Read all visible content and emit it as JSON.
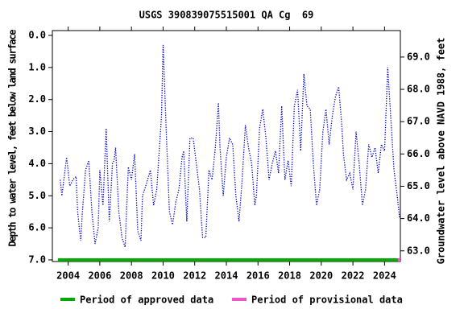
{
  "chart_data": {
    "type": "line",
    "title": "USGS 390839075515001 QA Cg  69",
    "y_label": "Depth to water level, feet below land surface",
    "y2_label": "Groundwater level above NAVD 1988, feet",
    "xlim": [
      2003.0,
      2025.0
    ],
    "xticks": [
      2004,
      2006,
      2008,
      2010,
      2012,
      2014,
      2016,
      2018,
      2020,
      2022,
      2024
    ],
    "ylim": [
      -0.15,
      7.05
    ],
    "yticks": [
      {
        "value": 0,
        "label": "0.0"
      },
      {
        "value": 1,
        "label": "1.0"
      },
      {
        "value": 2,
        "label": "2.0"
      },
      {
        "value": 3,
        "label": "3.0"
      },
      {
        "value": 4,
        "label": "4.0"
      },
      {
        "value": 5,
        "label": "5.0"
      },
      {
        "value": 6,
        "label": "6.0"
      },
      {
        "value": 7,
        "label": "7.0"
      }
    ],
    "y2lim": [
      69.82,
      62.67
    ],
    "y2ticks": [
      {
        "value": 63,
        "label": "63.0"
      },
      {
        "value": 64,
        "label": "64.0"
      },
      {
        "value": 65,
        "label": "65.0"
      },
      {
        "value": 66,
        "label": "66.0"
      },
      {
        "value": 67,
        "label": "67.0"
      },
      {
        "value": 68,
        "label": "68.0"
      },
      {
        "value": 69,
        "label": "69.0"
      }
    ],
    "series": [
      {
        "color": "#0000cc",
        "x": [
          2003.5,
          2003.6,
          2003.8,
          2003.9,
          2004.1,
          2004.3,
          2004.5,
          2004.6,
          2004.7,
          2004.8,
          2004.9,
          2005.1,
          2005.3,
          2005.5,
          2005.7,
          2005.9,
          2006.0,
          2006.2,
          2006.4,
          2006.6,
          2006.8,
          2006.9,
          2007.0,
          2007.2,
          2007.4,
          2007.6,
          2007.8,
          2008.0,
          2008.2,
          2008.4,
          2008.6,
          2008.7,
          2008.9,
          2009.2,
          2009.4,
          2009.6,
          2009.9,
          2010.0,
          2010.2,
          2010.4,
          2010.6,
          2010.8,
          2011.0,
          2011.2,
          2011.3,
          2011.5,
          2011.7,
          2011.9,
          2012.1,
          2012.3,
          2012.5,
          2012.7,
          2012.9,
          2013.1,
          2013.3,
          2013.5,
          2013.6,
          2013.8,
          2014.0,
          2014.2,
          2014.4,
          2014.6,
          2014.8,
          2015.0,
          2015.2,
          2015.4,
          2015.6,
          2015.8,
          2015.9,
          2016.1,
          2016.3,
          2016.5,
          2016.7,
          2016.9,
          2017.1,
          2017.3,
          2017.5,
          2017.7,
          2017.9,
          2018.1,
          2018.3,
          2018.5,
          2018.7,
          2018.9,
          2019.1,
          2019.3,
          2019.5,
          2019.7,
          2019.9,
          2020.1,
          2020.3,
          2020.5,
          2020.7,
          2020.9,
          2021.1,
          2021.3,
          2021.4,
          2021.6,
          2021.8,
          2022.0,
          2022.2,
          2022.4,
          2022.6,
          2022.8,
          2023.0,
          2023.2,
          2023.4,
          2023.6,
          2023.8,
          2024.0,
          2024.2,
          2024.4,
          2024.6,
          2024.8,
          2024.95
        ],
        "values": [
          4.5,
          5.0,
          4.2,
          3.8,
          4.7,
          4.5,
          4.4,
          5.5,
          6.0,
          6.4,
          5.5,
          4.2,
          3.9,
          5.5,
          6.5,
          6.0,
          4.2,
          5.3,
          2.9,
          5.8,
          4.0,
          3.9,
          3.5,
          5.5,
          6.3,
          6.6,
          4.1,
          4.5,
          3.7,
          6.1,
          6.4,
          5.0,
          4.7,
          4.2,
          5.3,
          4.8,
          2.5,
          0.3,
          3.0,
          5.5,
          5.9,
          5.2,
          4.8,
          3.8,
          3.6,
          5.8,
          3.2,
          3.2,
          4.0,
          4.8,
          6.3,
          6.3,
          4.2,
          4.5,
          3.5,
          2.1,
          3.5,
          5.0,
          3.8,
          3.2,
          3.4,
          5.0,
          5.8,
          4.5,
          2.8,
          3.5,
          4.0,
          5.3,
          5.0,
          2.9,
          2.3,
          3.2,
          4.5,
          4.0,
          3.6,
          4.3,
          2.2,
          4.5,
          3.9,
          4.7,
          2.2,
          1.7,
          3.6,
          1.2,
          2.2,
          2.3,
          4.0,
          5.3,
          4.8,
          3.0,
          2.3,
          3.4,
          2.5,
          1.9,
          1.6,
          2.8,
          3.7,
          4.5,
          4.3,
          4.8,
          3.0,
          4.0,
          5.3,
          4.8,
          3.4,
          3.8,
          3.5,
          4.3,
          3.4,
          3.6,
          1.0,
          2.6,
          4.2,
          5.0,
          5.7
        ]
      }
    ],
    "periods": [
      {
        "name": "Period of approved data",
        "color": "#00aa00",
        "start": 2003.35,
        "end": 2024.85,
        "depth": 7.0
      },
      {
        "name": "Period of provisional data",
        "color": "#ee55cc",
        "start": 2024.85,
        "end": 2025.0,
        "depth": 7.0
      }
    ]
  }
}
